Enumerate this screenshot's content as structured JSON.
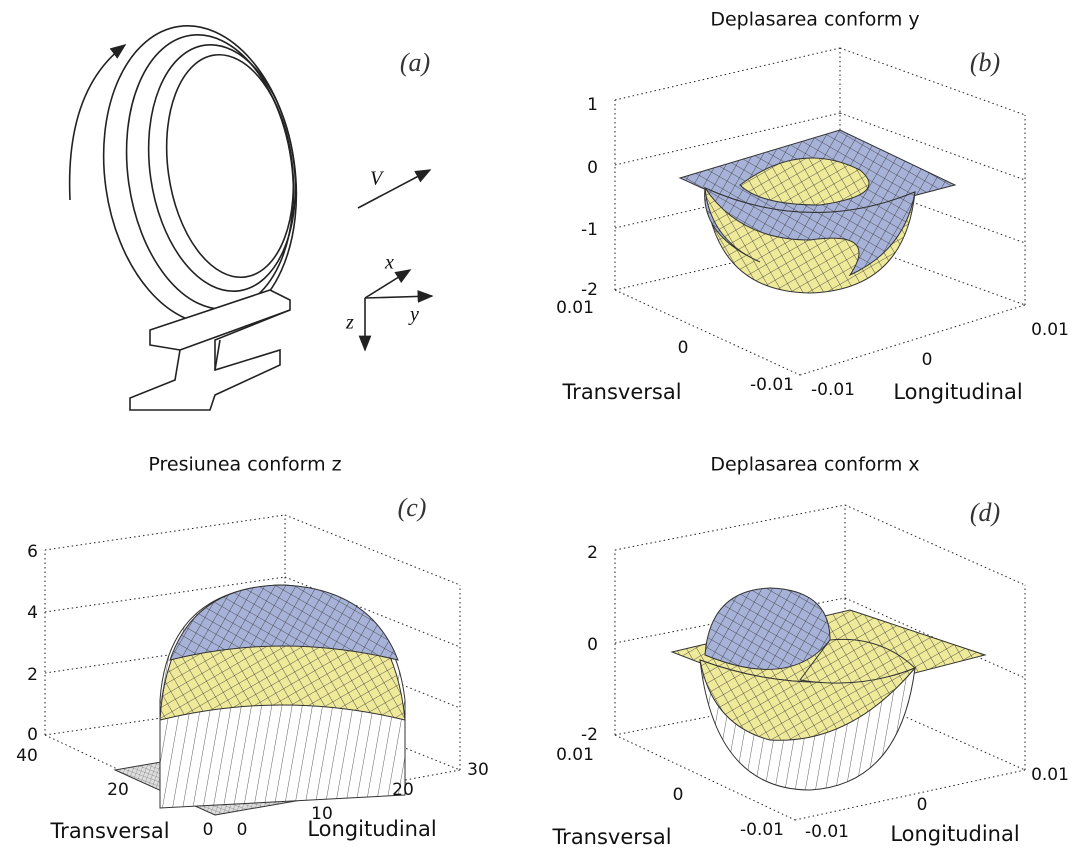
{
  "panels": [
    {
      "label": "(a)",
      "velocity": "V",
      "axis_x": "x",
      "axis_y": "y",
      "axis_z": "z"
    },
    {
      "label": "(b)",
      "title": "Deplasarea conform y",
      "z_ticks": [
        "1",
        "0",
        "-1",
        "-2"
      ],
      "transversal_ticks": [
        "0.01",
        "0",
        "-0.01"
      ],
      "longitudinal_ticks": [
        "-0.01",
        "0",
        "0.01"
      ],
      "transversal_label": "Transversal",
      "longitudinal_label": "Longitudinal"
    },
    {
      "label": "(c)",
      "title": "Presiunea conform z",
      "z_ticks": [
        "6",
        "4",
        "2",
        "0"
      ],
      "transversal_ticks": [
        "40",
        "20",
        "0"
      ],
      "longitudinal_ticks": [
        "0",
        "10",
        "20",
        "30"
      ],
      "transversal_label": "Transversal",
      "longitudinal_label": "Longitudinal"
    },
    {
      "label": "(d)",
      "title": "Deplasarea conform x",
      "z_ticks": [
        "2",
        "0",
        "-2"
      ],
      "transversal_ticks": [
        "0.01",
        "0",
        "-0.01"
      ],
      "longitudinal_ticks": [
        "-0.01",
        "0",
        "0.01"
      ],
      "transversal_label": "Transversal",
      "longitudinal_label": "Longitudinal"
    }
  ]
}
